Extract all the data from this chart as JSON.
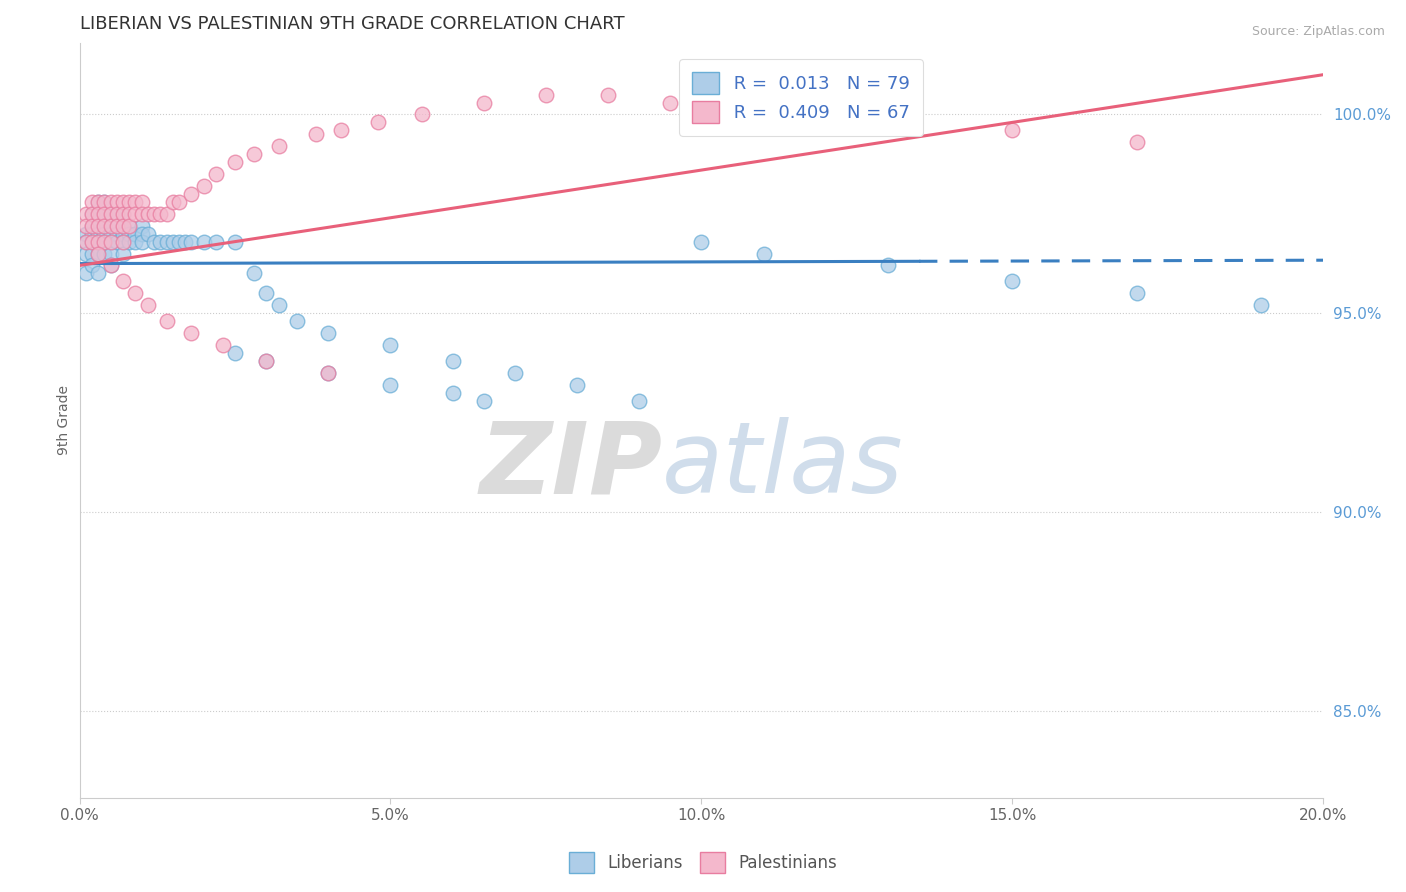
{
  "title": "LIBERIAN VS PALESTINIAN 9TH GRADE CORRELATION CHART",
  "source": "Source: ZipAtlas.com",
  "ylabel": "9th Grade",
  "yaxis_labels": [
    "100.0%",
    "95.0%",
    "90.0%",
    "85.0%"
  ],
  "yaxis_values": [
    1.0,
    0.95,
    0.9,
    0.85
  ],
  "xmin": 0.0,
  "xmax": 0.2,
  "ymin": 0.828,
  "ymax": 1.018,
  "legend_R1": "R =  0.013",
  "legend_N1": "N = 79",
  "legend_R2": "R =  0.409",
  "legend_N2": "N = 67",
  "liberian_color": "#aecde8",
  "palestinian_color": "#f4b8cc",
  "liberian_edge_color": "#6aaed6",
  "palestinian_edge_color": "#e87da0",
  "liberian_trend_color": "#3a7fc1",
  "palestinian_trend_color": "#e8607a",
  "watermark_zip": "ZIP",
  "watermark_atlas": "atlas",
  "lib_legend_label": "Liberians",
  "pal_legend_label": "Palestinians",
  "liberian_x": [
    0.001,
    0.001,
    0.001,
    0.001,
    0.002,
    0.002,
    0.002,
    0.002,
    0.002,
    0.002,
    0.003,
    0.003,
    0.003,
    0.003,
    0.003,
    0.003,
    0.003,
    0.004,
    0.004,
    0.004,
    0.004,
    0.004,
    0.004,
    0.005,
    0.005,
    0.005,
    0.005,
    0.005,
    0.005,
    0.006,
    0.006,
    0.006,
    0.006,
    0.007,
    0.007,
    0.007,
    0.007,
    0.007,
    0.008,
    0.008,
    0.008,
    0.009,
    0.009,
    0.01,
    0.01,
    0.01,
    0.011,
    0.012,
    0.013,
    0.014,
    0.015,
    0.016,
    0.017,
    0.018,
    0.02,
    0.022,
    0.025,
    0.028,
    0.03,
    0.032,
    0.035,
    0.04,
    0.05,
    0.06,
    0.07,
    0.08,
    0.09,
    0.1,
    0.11,
    0.13,
    0.15,
    0.17,
    0.19,
    0.025,
    0.03,
    0.04,
    0.05,
    0.06,
    0.065
  ],
  "liberian_y": [
    0.97,
    0.968,
    0.965,
    0.96,
    0.975,
    0.972,
    0.97,
    0.968,
    0.965,
    0.962,
    0.978,
    0.975,
    0.972,
    0.97,
    0.968,
    0.965,
    0.96,
    0.978,
    0.975,
    0.972,
    0.97,
    0.968,
    0.965,
    0.975,
    0.972,
    0.97,
    0.968,
    0.965,
    0.962,
    0.975,
    0.972,
    0.97,
    0.968,
    0.975,
    0.972,
    0.97,
    0.968,
    0.965,
    0.972,
    0.97,
    0.968,
    0.97,
    0.968,
    0.972,
    0.97,
    0.968,
    0.97,
    0.968,
    0.968,
    0.968,
    0.968,
    0.968,
    0.968,
    0.968,
    0.968,
    0.968,
    0.968,
    0.96,
    0.955,
    0.952,
    0.948,
    0.945,
    0.942,
    0.938,
    0.935,
    0.932,
    0.928,
    0.968,
    0.965,
    0.962,
    0.958,
    0.955,
    0.952,
    0.94,
    0.938,
    0.935,
    0.932,
    0.93,
    0.928
  ],
  "palestinian_x": [
    0.001,
    0.001,
    0.001,
    0.002,
    0.002,
    0.002,
    0.002,
    0.003,
    0.003,
    0.003,
    0.003,
    0.004,
    0.004,
    0.004,
    0.004,
    0.005,
    0.005,
    0.005,
    0.005,
    0.006,
    0.006,
    0.006,
    0.007,
    0.007,
    0.007,
    0.007,
    0.008,
    0.008,
    0.008,
    0.009,
    0.009,
    0.01,
    0.01,
    0.011,
    0.012,
    0.013,
    0.014,
    0.015,
    0.016,
    0.018,
    0.02,
    0.022,
    0.025,
    0.028,
    0.032,
    0.038,
    0.042,
    0.048,
    0.055,
    0.065,
    0.075,
    0.085,
    0.095,
    0.11,
    0.13,
    0.15,
    0.17,
    0.003,
    0.005,
    0.007,
    0.009,
    0.011,
    0.014,
    0.018,
    0.023,
    0.03,
    0.04
  ],
  "palestinian_y": [
    0.975,
    0.972,
    0.968,
    0.978,
    0.975,
    0.972,
    0.968,
    0.978,
    0.975,
    0.972,
    0.968,
    0.978,
    0.975,
    0.972,
    0.968,
    0.978,
    0.975,
    0.972,
    0.968,
    0.978,
    0.975,
    0.972,
    0.978,
    0.975,
    0.972,
    0.968,
    0.978,
    0.975,
    0.972,
    0.978,
    0.975,
    0.978,
    0.975,
    0.975,
    0.975,
    0.975,
    0.975,
    0.978,
    0.978,
    0.98,
    0.982,
    0.985,
    0.988,
    0.99,
    0.992,
    0.995,
    0.996,
    0.998,
    1.0,
    1.003,
    1.005,
    1.005,
    1.003,
    1.0,
    0.998,
    0.996,
    0.993,
    0.965,
    0.962,
    0.958,
    0.955,
    0.952,
    0.948,
    0.945,
    0.942,
    0.938,
    0.935
  ]
}
